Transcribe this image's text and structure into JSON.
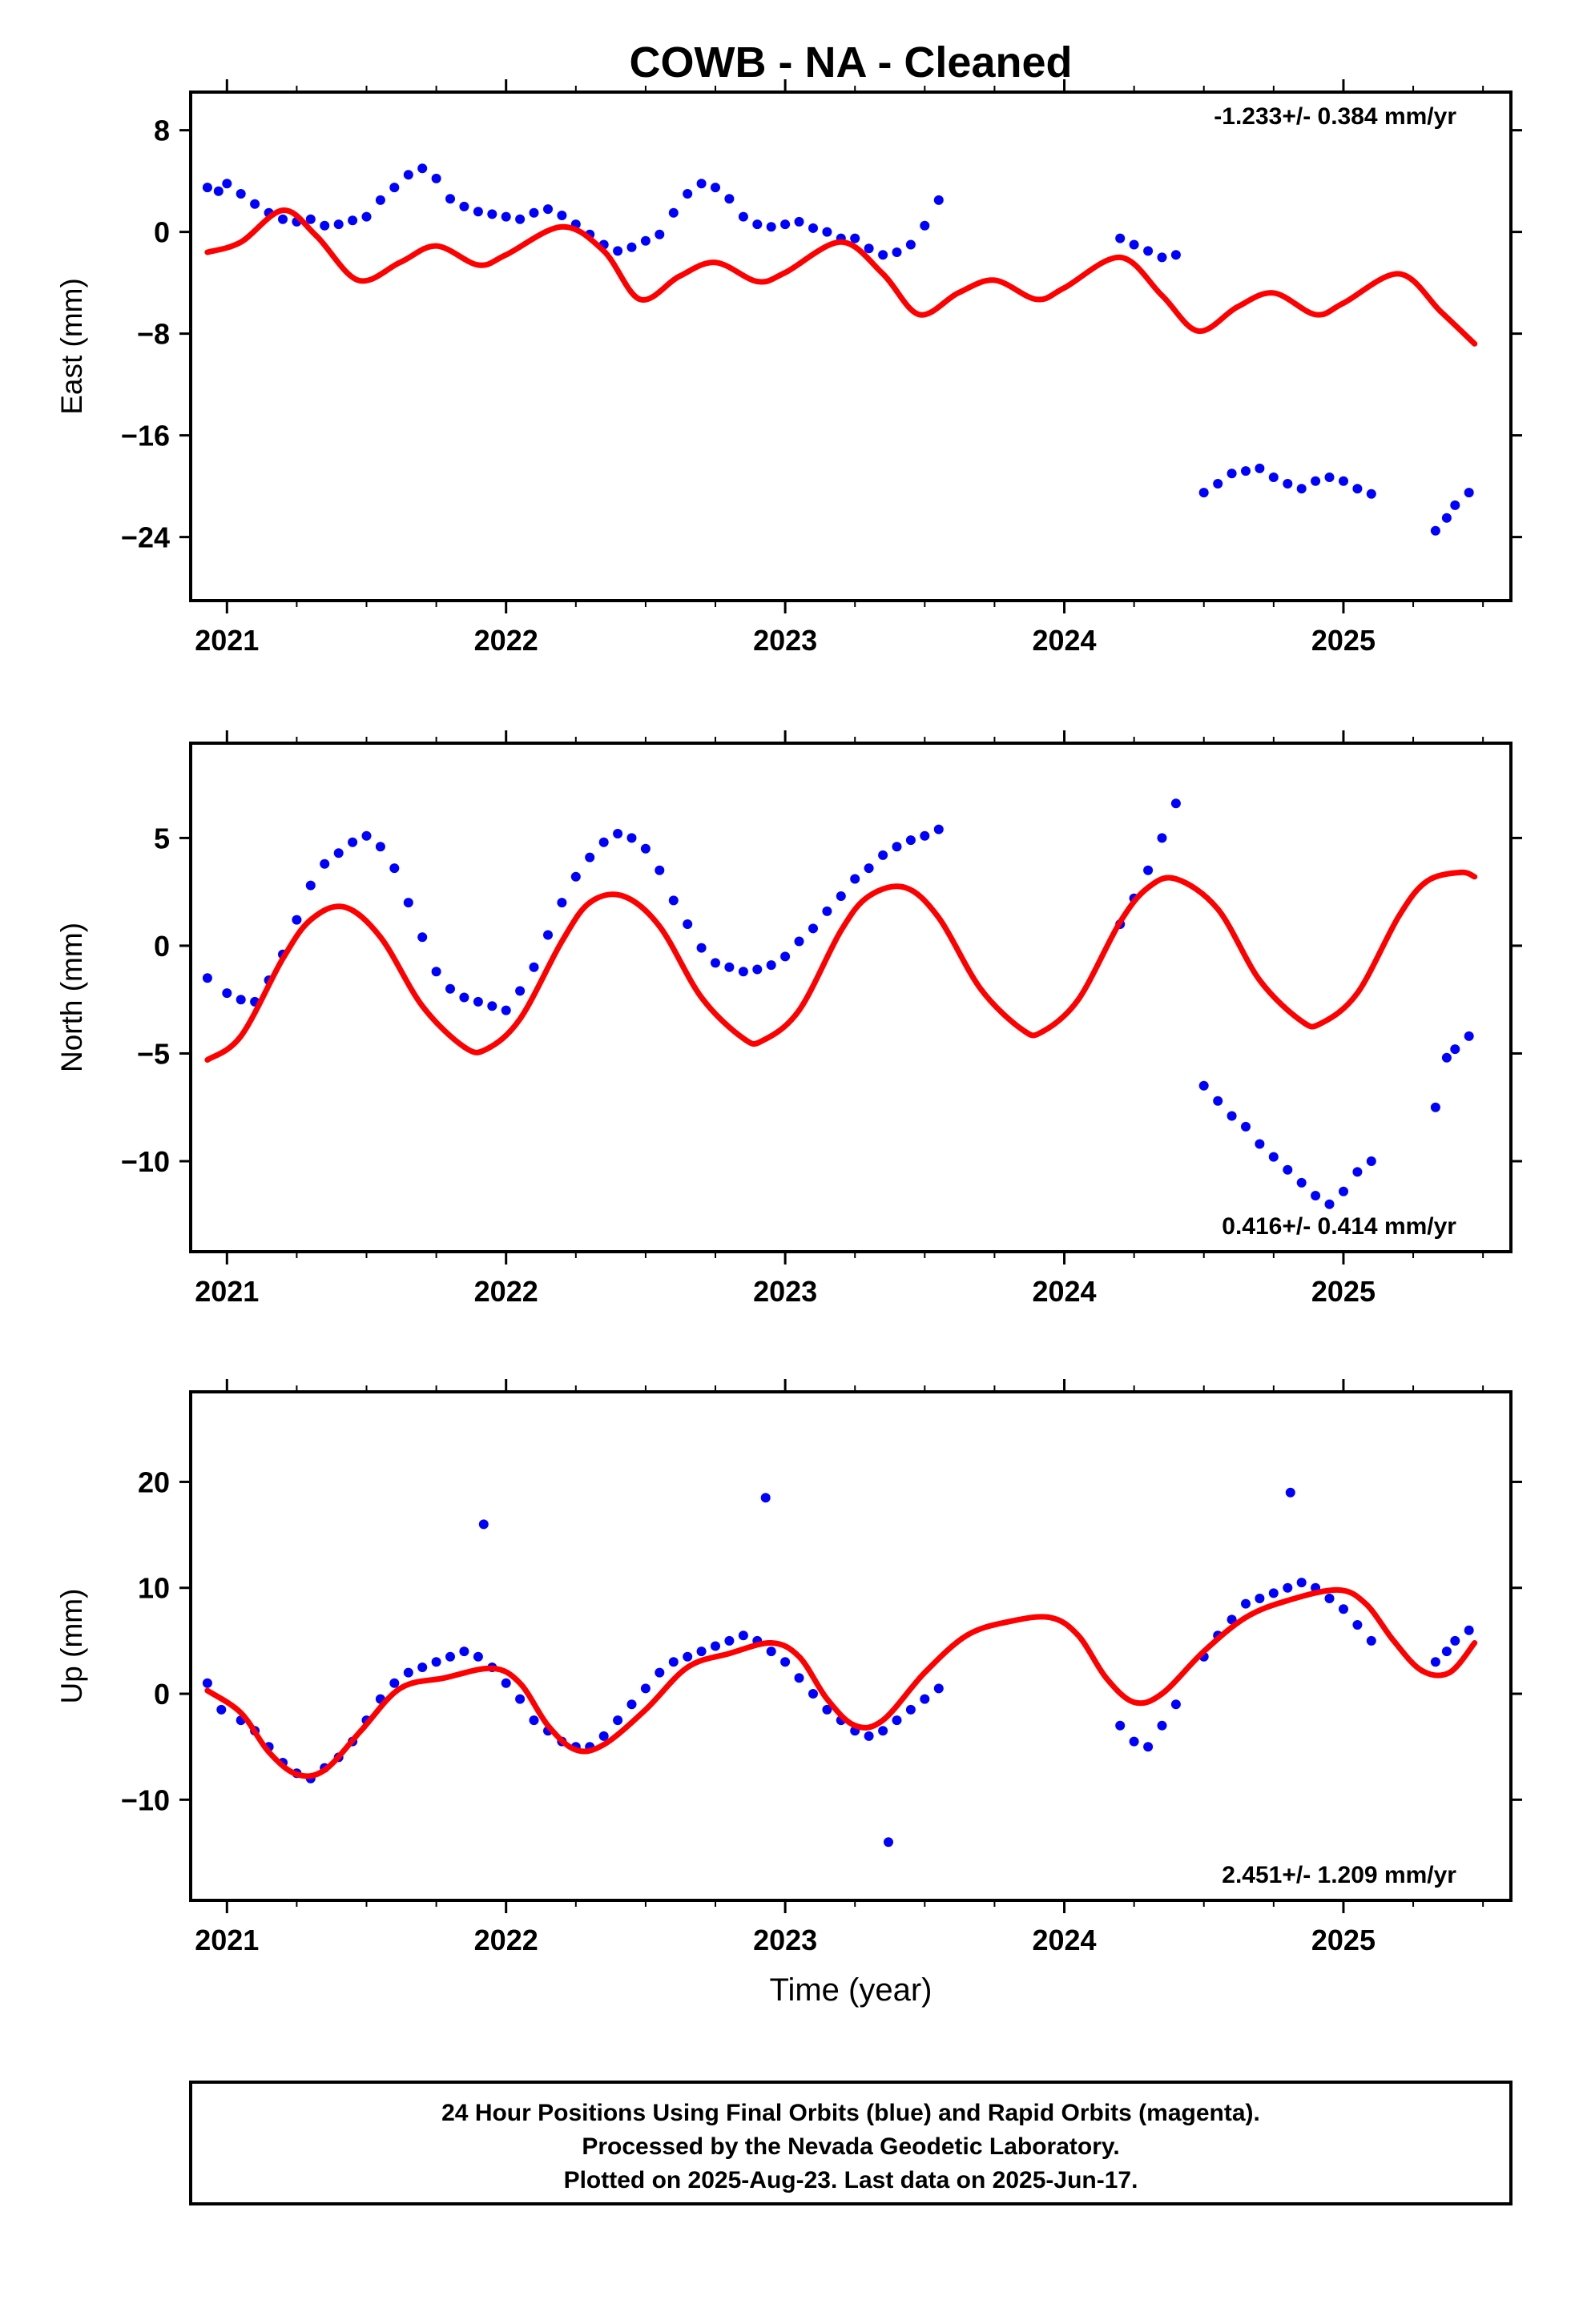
{
  "chart_data": {
    "type": "scatter",
    "title": "COWB  - NA - Cleaned",
    "xlabel": "Time (year)",
    "xlim": [
      2020.87,
      2025.6
    ],
    "x_ticks": [
      "2021",
      "2022",
      "2023",
      "2024",
      "2025"
    ],
    "series_styles": {
      "observations": {
        "name": "24 Hour Positions (Final Orbits)",
        "color": "#0000ff",
        "kind": "points"
      },
      "model": {
        "name": "model fit",
        "color": "#ff0000",
        "kind": "line"
      }
    },
    "panels": [
      {
        "id": "east",
        "ylabel": "East (mm)",
        "ylim": [
          -29,
          11
        ],
        "y_ticks": [
          "8",
          "0",
          "−8",
          "−16",
          "−24"
        ],
        "y_tick_values": [
          8,
          0,
          -8,
          -16,
          -24
        ],
        "rate": "-1.233+/- 0.384 mm/yr",
        "rate_position": "top-right",
        "observations": {
          "x": [
            2020.93,
            2020.97,
            2021.0,
            2021.05,
            2021.1,
            2021.15,
            2021.2,
            2021.25,
            2021.3,
            2021.35,
            2021.4,
            2021.45,
            2021.5,
            2021.55,
            2021.6,
            2021.65,
            2021.7,
            2021.75,
            2021.8,
            2021.85,
            2021.9,
            2021.95,
            2022.0,
            2022.05,
            2022.1,
            2022.15,
            2022.2,
            2022.25,
            2022.3,
            2022.35,
            2022.4,
            2022.45,
            2022.5,
            2022.55,
            2022.6,
            2022.65,
            2022.7,
            2022.75,
            2022.8,
            2022.85,
            2022.9,
            2022.95,
            2023.0,
            2023.05,
            2023.1,
            2023.15,
            2023.2,
            2023.25,
            2023.3,
            2023.35,
            2023.4,
            2023.45,
            2023.5,
            2023.55,
            2024.2,
            2024.25,
            2024.3,
            2024.35,
            2024.4,
            2024.5,
            2024.55,
            2024.6,
            2024.65,
            2024.7,
            2024.75,
            2024.8,
            2024.85,
            2024.9,
            2024.95,
            2025.0,
            2025.05,
            2025.1,
            2025.33,
            2025.37,
            2025.4,
            2025.45
          ],
          "y": [
            3.5,
            3.2,
            3.8,
            3.0,
            2.2,
            1.5,
            1.0,
            0.8,
            1.0,
            0.5,
            0.6,
            0.9,
            1.2,
            2.5,
            3.5,
            4.5,
            5.0,
            4.2,
            2.6,
            2.0,
            1.6,
            1.4,
            1.2,
            1.0,
            1.5,
            1.8,
            1.3,
            0.6,
            -0.2,
            -1.0,
            -1.5,
            -1.2,
            -0.7,
            -0.2,
            1.5,
            3.0,
            3.8,
            3.5,
            2.6,
            1.2,
            0.6,
            0.4,
            0.6,
            0.8,
            0.3,
            0.0,
            -0.5,
            -0.5,
            -1.3,
            -1.8,
            -1.6,
            -1.0,
            0.5,
            2.5,
            -0.5,
            -1.0,
            -1.5,
            -2.0,
            -1.8,
            -20.5,
            -19.8,
            -19.0,
            -18.8,
            -18.6,
            -19.3,
            -19.8,
            -20.2,
            -19.6,
            -19.3,
            -19.6,
            -20.2,
            -20.6,
            -23.5,
            -22.5,
            -21.5,
            -20.5
          ]
        },
        "model": {
          "x": [
            2020.93,
            2021.05,
            2021.2,
            2021.32,
            2021.47,
            2021.62,
            2021.75,
            2021.9,
            2022.0,
            2022.2,
            2022.35,
            2022.48,
            2022.62,
            2022.75,
            2022.9,
            2023.0,
            2023.2,
            2023.35,
            2023.48,
            2023.62,
            2023.75,
            2023.9,
            2024.0,
            2024.2,
            2024.35,
            2024.48,
            2024.62,
            2024.75,
            2024.9,
            2025.0,
            2025.2,
            2025.35,
            2025.47
          ],
          "y": [
            -1.6,
            -0.8,
            1.7,
            -0.3,
            -3.8,
            -2.4,
            -1.1,
            -2.6,
            -1.8,
            0.4,
            -1.5,
            -5.3,
            -3.5,
            -2.4,
            -3.9,
            -3.2,
            -0.8,
            -3.3,
            -6.5,
            -4.8,
            -3.8,
            -5.3,
            -4.4,
            -2.0,
            -5.0,
            -7.8,
            -5.9,
            -4.8,
            -6.5,
            -5.6,
            -3.3,
            -6.3,
            -8.8
          ]
        }
      },
      {
        "id": "north",
        "ylabel": "North (mm)",
        "ylim": [
          -14.2,
          9.4
        ],
        "y_ticks": [
          "5",
          "0",
          "−5",
          "−10"
        ],
        "y_tick_values": [
          5,
          0,
          -5,
          -10
        ],
        "rate": "0.416+/- 0.414 mm/yr",
        "rate_position": "bottom-right",
        "observations": {
          "x": [
            2020.93,
            2021.0,
            2021.05,
            2021.1,
            2021.15,
            2021.2,
            2021.25,
            2021.3,
            2021.35,
            2021.4,
            2021.45,
            2021.5,
            2021.55,
            2021.6,
            2021.65,
            2021.7,
            2021.75,
            2021.8,
            2021.85,
            2021.9,
            2021.95,
            2022.0,
            2022.05,
            2022.1,
            2022.15,
            2022.2,
            2022.25,
            2022.3,
            2022.35,
            2022.4,
            2022.45,
            2022.5,
            2022.55,
            2022.6,
            2022.65,
            2022.7,
            2022.75,
            2022.8,
            2022.85,
            2022.9,
            2022.95,
            2023.0,
            2023.05,
            2023.1,
            2023.15,
            2023.2,
            2023.25,
            2023.3,
            2023.35,
            2023.4,
            2023.45,
            2023.5,
            2023.55,
            2024.2,
            2024.25,
            2024.3,
            2024.35,
            2024.4,
            2024.5,
            2024.55,
            2024.6,
            2024.65,
            2024.7,
            2024.75,
            2024.8,
            2024.85,
            2024.9,
            2024.95,
            2025.0,
            2025.05,
            2025.1,
            2025.33,
            2025.37,
            2025.4,
            2025.45
          ],
          "y": [
            -1.5,
            -2.2,
            -2.5,
            -2.6,
            -1.6,
            -0.4,
            1.2,
            2.8,
            3.8,
            4.3,
            4.8,
            5.1,
            4.6,
            3.6,
            2.0,
            0.4,
            -1.2,
            -2.0,
            -2.4,
            -2.6,
            -2.8,
            -3.0,
            -2.1,
            -1.0,
            0.5,
            2.0,
            3.2,
            4.1,
            4.8,
            5.2,
            5.0,
            4.5,
            3.5,
            2.1,
            1.0,
            -0.1,
            -0.8,
            -1.0,
            -1.2,
            -1.1,
            -0.9,
            -0.5,
            0.2,
            0.8,
            1.6,
            2.3,
            3.1,
            3.6,
            4.2,
            4.6,
            4.9,
            5.1,
            5.4,
            1.0,
            2.2,
            3.5,
            5.0,
            6.6,
            -6.5,
            -7.2,
            -7.9,
            -8.4,
            -9.2,
            -9.8,
            -10.4,
            -11.0,
            -11.6,
            -12.0,
            -11.4,
            -10.5,
            -10.0,
            -7.5,
            -5.2,
            -4.8,
            -4.2
          ]
        },
        "model": {
          "x": [
            2020.93,
            2021.05,
            2021.2,
            2021.3,
            2021.42,
            2021.55,
            2021.7,
            2021.85,
            2021.93,
            2022.05,
            2022.2,
            2022.3,
            2022.42,
            2022.55,
            2022.7,
            2022.85,
            2022.92,
            2023.05,
            2023.2,
            2023.3,
            2023.43,
            2023.55,
            2023.7,
            2023.85,
            2023.92,
            2024.05,
            2024.2,
            2024.3,
            2024.4,
            2024.55,
            2024.7,
            2024.85,
            2024.92,
            2025.05,
            2025.2,
            2025.3,
            2025.42,
            2025.47
          ],
          "y": [
            -5.3,
            -4.2,
            -0.6,
            1.2,
            1.8,
            0.4,
            -2.8,
            -4.7,
            -4.8,
            -3.4,
            0.2,
            2.0,
            2.3,
            0.9,
            -2.4,
            -4.3,
            -4.4,
            -3.0,
            0.7,
            2.3,
            2.7,
            1.3,
            -2.0,
            -3.9,
            -4.0,
            -2.5,
            1.1,
            2.7,
            3.1,
            1.7,
            -1.6,
            -3.5,
            -3.6,
            -2.2,
            1.4,
            3.0,
            3.4,
            3.2
          ]
        }
      },
      {
        "id": "up",
        "ylabel": "Up (mm)",
        "ylim": [
          -19.5,
          28.5
        ],
        "y_ticks": [
          "20",
          "10",
          "0",
          "−10"
        ],
        "y_tick_values": [
          20,
          10,
          0,
          -10
        ],
        "rate": "2.451+/- 1.209 mm/yr",
        "rate_position": "bottom-right",
        "observations": {
          "x": [
            2020.93,
            2020.98,
            2021.05,
            2021.1,
            2021.15,
            2021.2,
            2021.25,
            2021.3,
            2021.35,
            2021.4,
            2021.45,
            2021.5,
            2021.55,
            2021.6,
            2021.65,
            2021.7,
            2021.75,
            2021.8,
            2021.85,
            2021.9,
            2021.95,
            2022.0,
            2022.05,
            2022.1,
            2022.15,
            2022.2,
            2022.25,
            2022.3,
            2022.35,
            2022.4,
            2022.45,
            2022.5,
            2022.55,
            2022.6,
            2022.65,
            2022.7,
            2022.75,
            2022.8,
            2022.85,
            2022.9,
            2022.95,
            2023.0,
            2023.05,
            2023.1,
            2023.15,
            2023.2,
            2023.25,
            2023.3,
            2023.35,
            2023.4,
            2023.45,
            2023.5,
            2023.55,
            2024.2,
            2024.25,
            2024.3,
            2024.35,
            2024.4,
            2024.5,
            2024.55,
            2024.6,
            2024.65,
            2024.7,
            2024.75,
            2024.8,
            2024.85,
            2024.9,
            2024.95,
            2025.0,
            2025.05,
            2025.1,
            2025.33,
            2025.37,
            2025.4,
            2025.45,
            2021.92,
            2022.93,
            2024.81,
            2023.37
          ],
          "y": [
            1.0,
            -1.5,
            -2.5,
            -3.5,
            -5.0,
            -6.5,
            -7.5,
            -8.0,
            -7.0,
            -6.0,
            -4.5,
            -2.5,
            -0.5,
            1.0,
            2.0,
            2.5,
            3.0,
            3.5,
            4.0,
            3.5,
            2.5,
            1.0,
            -0.5,
            -2.5,
            -3.5,
            -4.5,
            -5.0,
            -5.0,
            -4.0,
            -2.5,
            -1.0,
            0.5,
            2.0,
            3.0,
            3.5,
            4.0,
            4.5,
            5.0,
            5.5,
            5.0,
            4.0,
            3.0,
            1.5,
            0.0,
            -1.5,
            -2.5,
            -3.5,
            -4.0,
            -3.5,
            -2.5,
            -1.5,
            -0.5,
            0.5,
            -3.0,
            -4.5,
            -5.0,
            -3.0,
            -1.0,
            3.5,
            5.5,
            7.0,
            8.5,
            9.0,
            9.5,
            10.0,
            10.5,
            10.0,
            9.0,
            8.0,
            6.5,
            5.0,
            3.0,
            4.0,
            5.0,
            6.0,
            16.0,
            18.5,
            19.0,
            -14.0
          ]
        },
        "model": {
          "x": [
            2020.93,
            2021.05,
            2021.15,
            2021.25,
            2021.35,
            2021.48,
            2021.62,
            2021.78,
            2021.95,
            2022.05,
            2022.15,
            2022.25,
            2022.35,
            2022.5,
            2022.65,
            2022.8,
            2022.95,
            2023.05,
            2023.15,
            2023.25,
            2023.35,
            2023.5,
            2023.65,
            2023.8,
            2023.95,
            2024.05,
            2024.15,
            2024.25,
            2024.35,
            2024.5,
            2024.65,
            2024.8,
            2024.98,
            2025.08,
            2025.18,
            2025.28,
            2025.38,
            2025.47
          ],
          "y": [
            0.3,
            -1.8,
            -5.5,
            -7.6,
            -7.2,
            -3.5,
            0.5,
            1.5,
            2.4,
            1.0,
            -3.0,
            -5.3,
            -4.8,
            -1.5,
            2.5,
            3.8,
            4.8,
            3.5,
            -0.5,
            -3.0,
            -2.5,
            2.0,
            5.5,
            6.8,
            7.2,
            5.5,
            1.5,
            -0.8,
            0.0,
            4.0,
            7.2,
            8.8,
            9.8,
            8.5,
            5.0,
            2.2,
            2.0,
            4.8
          ]
        }
      }
    ]
  },
  "footer": {
    "line1": "24 Hour Positions Using Final Orbits (blue) and Rapid Orbits (magenta).",
    "line2": "Processed by the Nevada Geodetic Laboratory.",
    "line3": "Plotted on 2025-Aug-23. Last data on 2025-Jun-17."
  }
}
